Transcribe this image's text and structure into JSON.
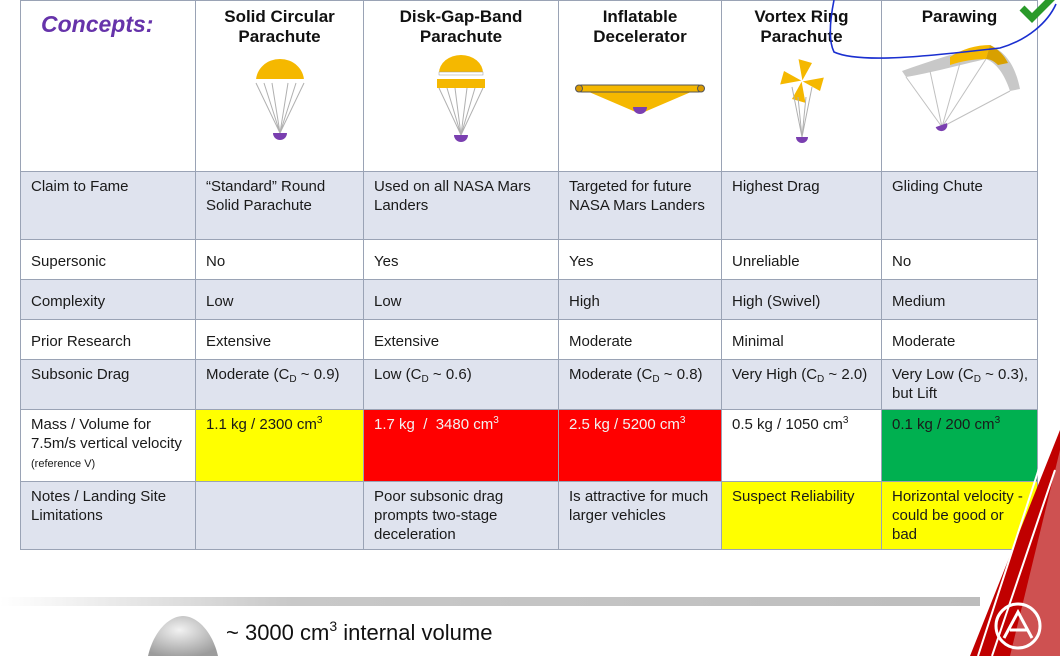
{
  "header": {
    "concepts_label": "Concepts:",
    "columns": [
      {
        "title": "Solid Circular Parachute",
        "icon": "solid-circular-parachute-icon"
      },
      {
        "title": "Disk-Gap-Band Parachute",
        "icon": "disk-gap-band-parachute-icon"
      },
      {
        "title": "Inflatable Decelerator",
        "icon": "inflatable-decelerator-icon"
      },
      {
        "title": "Vortex Ring Parachute",
        "icon": "vortex-ring-parachute-icon"
      },
      {
        "title": "Parawing",
        "icon": "parawing-icon"
      }
    ]
  },
  "rows": [
    {
      "label": "Claim to Fame",
      "cells": [
        "“Standard” Round Solid Parachute",
        "Used on all NASA Mars Landers",
        "Targeted for future NASA Mars Landers",
        "Highest Drag",
        "Gliding Chute"
      ]
    },
    {
      "label": "Supersonic",
      "cells": [
        "No",
        "Yes",
        "Yes",
        "Unreliable",
        "No"
      ]
    },
    {
      "label": "Complexity",
      "cells": [
        "Low",
        "Low",
        "High",
        "High (Swivel)",
        "Medium"
      ]
    },
    {
      "label": "Prior Research",
      "cells": [
        "Extensive",
        "Extensive",
        "Moderate",
        "Minimal",
        "Moderate"
      ]
    },
    {
      "label": "Subsonic Drag",
      "cells": [
        {
          "pre": "Moderate (C",
          "sub": "D",
          "post": " ~ 0.9)"
        },
        {
          "pre": "Low (C",
          "sub": "D",
          "post": " ~ 0.6)"
        },
        {
          "pre": "Moderate (C",
          "sub": "D",
          "post": " ~ 0.8)"
        },
        {
          "pre": "Very High (C",
          "sub": "D",
          "post": " ~ 2.0)"
        },
        {
          "pre": "Very Low (C",
          "sub": "D",
          "post": " ~ 0.3), but Lift"
        }
      ]
    },
    {
      "label_main": "Mass / Volume for 7.5m/s vertical velocity",
      "label_small": "(reference V)",
      "cells": [
        {
          "text": "1.1 kg / 2300 cm",
          "sup": "3"
        },
        {
          "text": "1.7 kg  /  3480 cm",
          "sup": "3"
        },
        {
          "text": "2.5 kg / 5200 cm",
          "sup": "3"
        },
        {
          "text": "0.5 kg / 1050 cm",
          "sup": "3"
        },
        {
          "text": "0.1 kg / 200 cm",
          "sup": "3"
        }
      ]
    },
    {
      "label": "Notes / Landing Site Limitations",
      "cells": [
        "",
        "Poor subsonic drag prompts two-stage deceleration",
        "Is attractive for much larger vehicles",
        "Suspect Reliability",
        "Horizontal velocity -could be good or bad"
      ]
    }
  ],
  "cell_colors": {
    "yellow": "#ffff00",
    "red": "#ff0000",
    "green": "#00b050",
    "alt_row": "#dfe3ee",
    "concepts_purple": "#6633aa",
    "canopy_gold": "#f5b800",
    "payload_purple": "#7a3fb0",
    "annotation_blue": "#1a2fd0"
  },
  "footer": {
    "volume_prefix": "~ 3000 cm",
    "volume_sup": "3",
    "volume_suffix": " internal volume",
    "capsule_icon": "capsule-icon",
    "logo_icon": "logo-icon"
  }
}
